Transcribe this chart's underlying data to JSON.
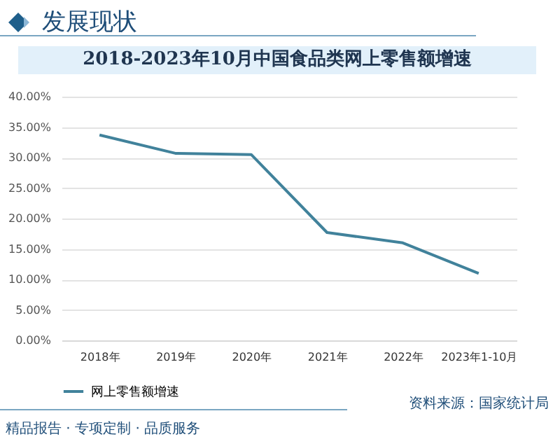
{
  "chart_data": {
    "type": "line",
    "title": "2018-2023年10月中国食品类网上零售额增速",
    "annotations": [
      "发展现状",
      "资料来源：国家统计局",
      "精品报告 · 专项定制 · 品质服务"
    ],
    "categories": [
      "2018年",
      "2019年",
      "2020年",
      "2021年",
      "2022年",
      "2023年1-10月"
    ],
    "series": [
      {
        "name": "网上零售额增速",
        "color": "#41829b",
        "values": [
          33.7,
          30.7,
          30.5,
          17.7,
          16.0,
          11.0
        ]
      }
    ],
    "ylim": [
      0,
      40
    ],
    "yticks": [
      {
        "value": 0,
        "label": "0.00%"
      },
      {
        "value": 5,
        "label": "5.00%"
      },
      {
        "value": 10,
        "label": "10.00%"
      },
      {
        "value": 15,
        "label": "15.00%"
      },
      {
        "value": 20,
        "label": "20.00%"
      },
      {
        "value": 25,
        "label": "25.00%"
      },
      {
        "value": 30,
        "label": "30.00%"
      },
      {
        "value": 35,
        "label": "35.00%"
      },
      {
        "value": 40,
        "label": "40.00%"
      }
    ],
    "grid": "y",
    "legend": "bottom"
  }
}
